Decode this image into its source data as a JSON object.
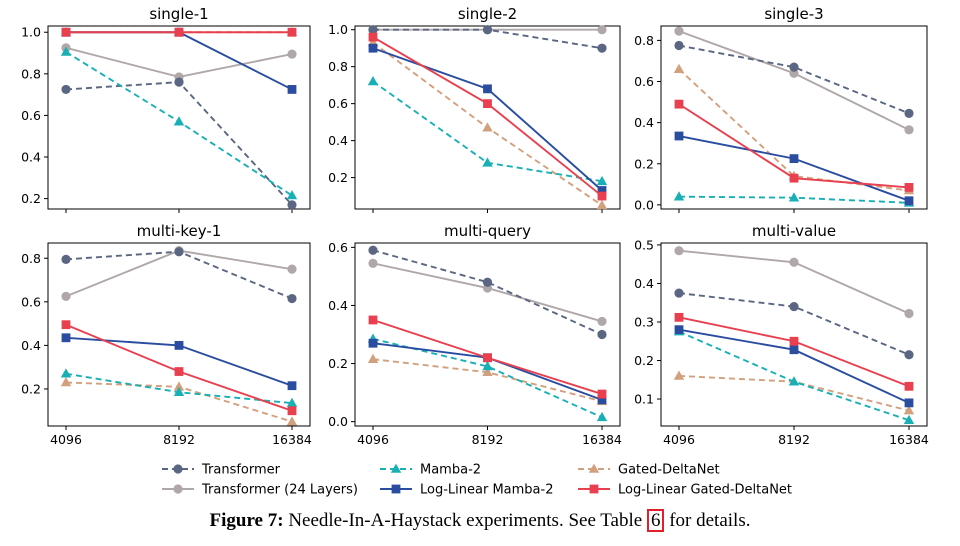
{
  "chart_data": [
    {
      "type": "line",
      "title": "single-1",
      "x": [
        4096,
        8192,
        16384
      ],
      "ylim": [
        0.15,
        1.03
      ],
      "yticks": [
        0.2,
        0.4,
        0.6,
        0.8,
        1.0
      ],
      "ytick_labels": [
        "0.2",
        "0.4",
        "0.6",
        "0.8",
        "1.0"
      ],
      "series": [
        {
          "name": "Transformer",
          "values": [
            0.725,
            0.76,
            0.17
          ]
        },
        {
          "name": "Transformer (24 Layers)",
          "values": [
            0.925,
            0.785,
            0.895
          ]
        },
        {
          "name": "Mamba-2",
          "values": [
            0.905,
            0.57,
            0.215
          ]
        },
        {
          "name": "Log-Linear Mamba-2",
          "values": [
            1.0,
            1.0,
            0.725
          ]
        },
        {
          "name": "Gated-DeltaNet",
          "values": [
            1.0,
            1.0,
            1.0
          ]
        },
        {
          "name": "Log-Linear Gated-DeltaNet",
          "values": [
            1.0,
            1.0,
            1.0
          ]
        }
      ]
    },
    {
      "type": "line",
      "title": "single-2",
      "x": [
        4096,
        8192,
        16384
      ],
      "ylim": [
        0.03,
        1.02
      ],
      "yticks": [
        0.2,
        0.4,
        0.6,
        0.8,
        1.0
      ],
      "ytick_labels": [
        "0.2",
        "0.4",
        "0.6",
        "0.8",
        "1.0"
      ],
      "series": [
        {
          "name": "Transformer",
          "values": [
            1.0,
            1.0,
            0.9
          ]
        },
        {
          "name": "Transformer (24 Layers)",
          "values": [
            1.0,
            1.0,
            1.0
          ]
        },
        {
          "name": "Mamba-2",
          "values": [
            0.72,
            0.28,
            0.18
          ]
        },
        {
          "name": "Log-Linear Mamba-2",
          "values": [
            0.9,
            0.68,
            0.13
          ]
        },
        {
          "name": "Gated-DeltaNet",
          "values": [
            0.93,
            0.47,
            0.05
          ]
        },
        {
          "name": "Log-Linear Gated-DeltaNet",
          "values": [
            0.96,
            0.6,
            0.1
          ]
        }
      ]
    },
    {
      "type": "line",
      "title": "single-3",
      "x": [
        4096,
        8192,
        16384
      ],
      "ylim": [
        -0.02,
        0.87
      ],
      "yticks": [
        0.0,
        0.2,
        0.4,
        0.6,
        0.8
      ],
      "ytick_labels": [
        "0.0",
        "0.2",
        "0.4",
        "0.6",
        "0.8"
      ],
      "series": [
        {
          "name": "Transformer",
          "values": [
            0.775,
            0.67,
            0.445
          ]
        },
        {
          "name": "Transformer (24 Layers)",
          "values": [
            0.845,
            0.64,
            0.365
          ]
        },
        {
          "name": "Mamba-2",
          "values": [
            0.04,
            0.035,
            0.01
          ]
        },
        {
          "name": "Log-Linear Mamba-2",
          "values": [
            0.335,
            0.225,
            0.02
          ]
        },
        {
          "name": "Gated-DeltaNet",
          "values": [
            0.66,
            0.14,
            0.07
          ]
        },
        {
          "name": "Log-Linear Gated-DeltaNet",
          "values": [
            0.49,
            0.13,
            0.085
          ]
        }
      ]
    },
    {
      "type": "line",
      "title": "multi-key-1",
      "x": [
        4096,
        8192,
        16384
      ],
      "ylim": [
        0.03,
        0.87
      ],
      "yticks": [
        0.2,
        0.4,
        0.6,
        0.8
      ],
      "ytick_labels": [
        "0.2",
        "0.4",
        "0.6",
        "0.8"
      ],
      "series": [
        {
          "name": "Transformer",
          "values": [
            0.795,
            0.83,
            0.615
          ]
        },
        {
          "name": "Transformer (24 Layers)",
          "values": [
            0.625,
            0.835,
            0.75
          ]
        },
        {
          "name": "Mamba-2",
          "values": [
            0.27,
            0.185,
            0.135
          ]
        },
        {
          "name": "Log-Linear Mamba-2",
          "values": [
            0.435,
            0.4,
            0.215
          ]
        },
        {
          "name": "Gated-DeltaNet",
          "values": [
            0.23,
            0.21,
            0.05
          ]
        },
        {
          "name": "Log-Linear Gated-DeltaNet",
          "values": [
            0.495,
            0.28,
            0.1
          ]
        }
      ]
    },
    {
      "type": "line",
      "title": "multi-query",
      "x": [
        4096,
        8192,
        16384
      ],
      "ylim": [
        -0.015,
        0.615
      ],
      "yticks": [
        0.0,
        0.2,
        0.4,
        0.6
      ],
      "ytick_labels": [
        "0.0",
        "0.2",
        "0.4",
        "0.6"
      ],
      "series": [
        {
          "name": "Transformer",
          "values": [
            0.59,
            0.48,
            0.3
          ]
        },
        {
          "name": "Transformer (24 Layers)",
          "values": [
            0.545,
            0.46,
            0.345
          ]
        },
        {
          "name": "Mamba-2",
          "values": [
            0.285,
            0.19,
            0.015
          ]
        },
        {
          "name": "Log-Linear Mamba-2",
          "values": [
            0.27,
            0.22,
            0.075
          ]
        },
        {
          "name": "Gated-DeltaNet",
          "values": [
            0.215,
            0.17,
            0.07
          ]
        },
        {
          "name": "Log-Linear Gated-DeltaNet",
          "values": [
            0.35,
            0.22,
            0.095
          ]
        }
      ]
    },
    {
      "type": "line",
      "title": "multi-value",
      "x": [
        4096,
        8192,
        16384
      ],
      "ylim": [
        0.03,
        0.505
      ],
      "yticks": [
        0.1,
        0.2,
        0.3,
        0.4,
        0.5
      ],
      "ytick_labels": [
        "0.1",
        "0.2",
        "0.3",
        "0.4",
        "0.5"
      ],
      "series": [
        {
          "name": "Transformer",
          "values": [
            0.375,
            0.34,
            0.215
          ]
        },
        {
          "name": "Transformer (24 Layers)",
          "values": [
            0.485,
            0.455,
            0.322
          ]
        },
        {
          "name": "Mamba-2",
          "values": [
            0.275,
            0.145,
            0.045
          ]
        },
        {
          "name": "Log-Linear Mamba-2",
          "values": [
            0.28,
            0.228,
            0.09
          ]
        },
        {
          "name": "Gated-DeltaNet",
          "values": [
            0.16,
            0.145,
            0.07
          ]
        },
        {
          "name": "Log-Linear Gated-DeltaNet",
          "values": [
            0.312,
            0.25,
            0.133
          ]
        }
      ]
    }
  ],
  "xtick_labels": [
    "4096",
    "8192",
    "16384"
  ],
  "series_styles": [
    {
      "name": "Transformer",
      "color": "#5a6682",
      "marker": "circle",
      "dash": true
    },
    {
      "name": "Transformer (24 Layers)",
      "color": "#b0a7a8",
      "marker": "circle",
      "dash": false
    },
    {
      "name": "Mamba-2",
      "color": "#19b0b5",
      "marker": "triangle",
      "dash": true
    },
    {
      "name": "Log-Linear Mamba-2",
      "color": "#2a4da0",
      "marker": "square",
      "dash": false
    },
    {
      "name": "Gated-DeltaNet",
      "color": "#d3a07e",
      "marker": "triangle",
      "dash": true
    },
    {
      "name": "Log-Linear Gated-DeltaNet",
      "color": "#e8404e",
      "marker": "square",
      "dash": false
    }
  ],
  "legend": {
    "placement": "bottom",
    "entries": [
      "Transformer",
      "Mamba-2",
      "Gated-DeltaNet",
      "Transformer (24 Layers)",
      "Log-Linear Mamba-2",
      "Log-Linear Gated-DeltaNet"
    ]
  },
  "caption": {
    "label": "Figure 7:",
    "text_before": " Needle-In-A-Haystack experiments. See Table ",
    "ref": "6",
    "text_after": " for details."
  }
}
